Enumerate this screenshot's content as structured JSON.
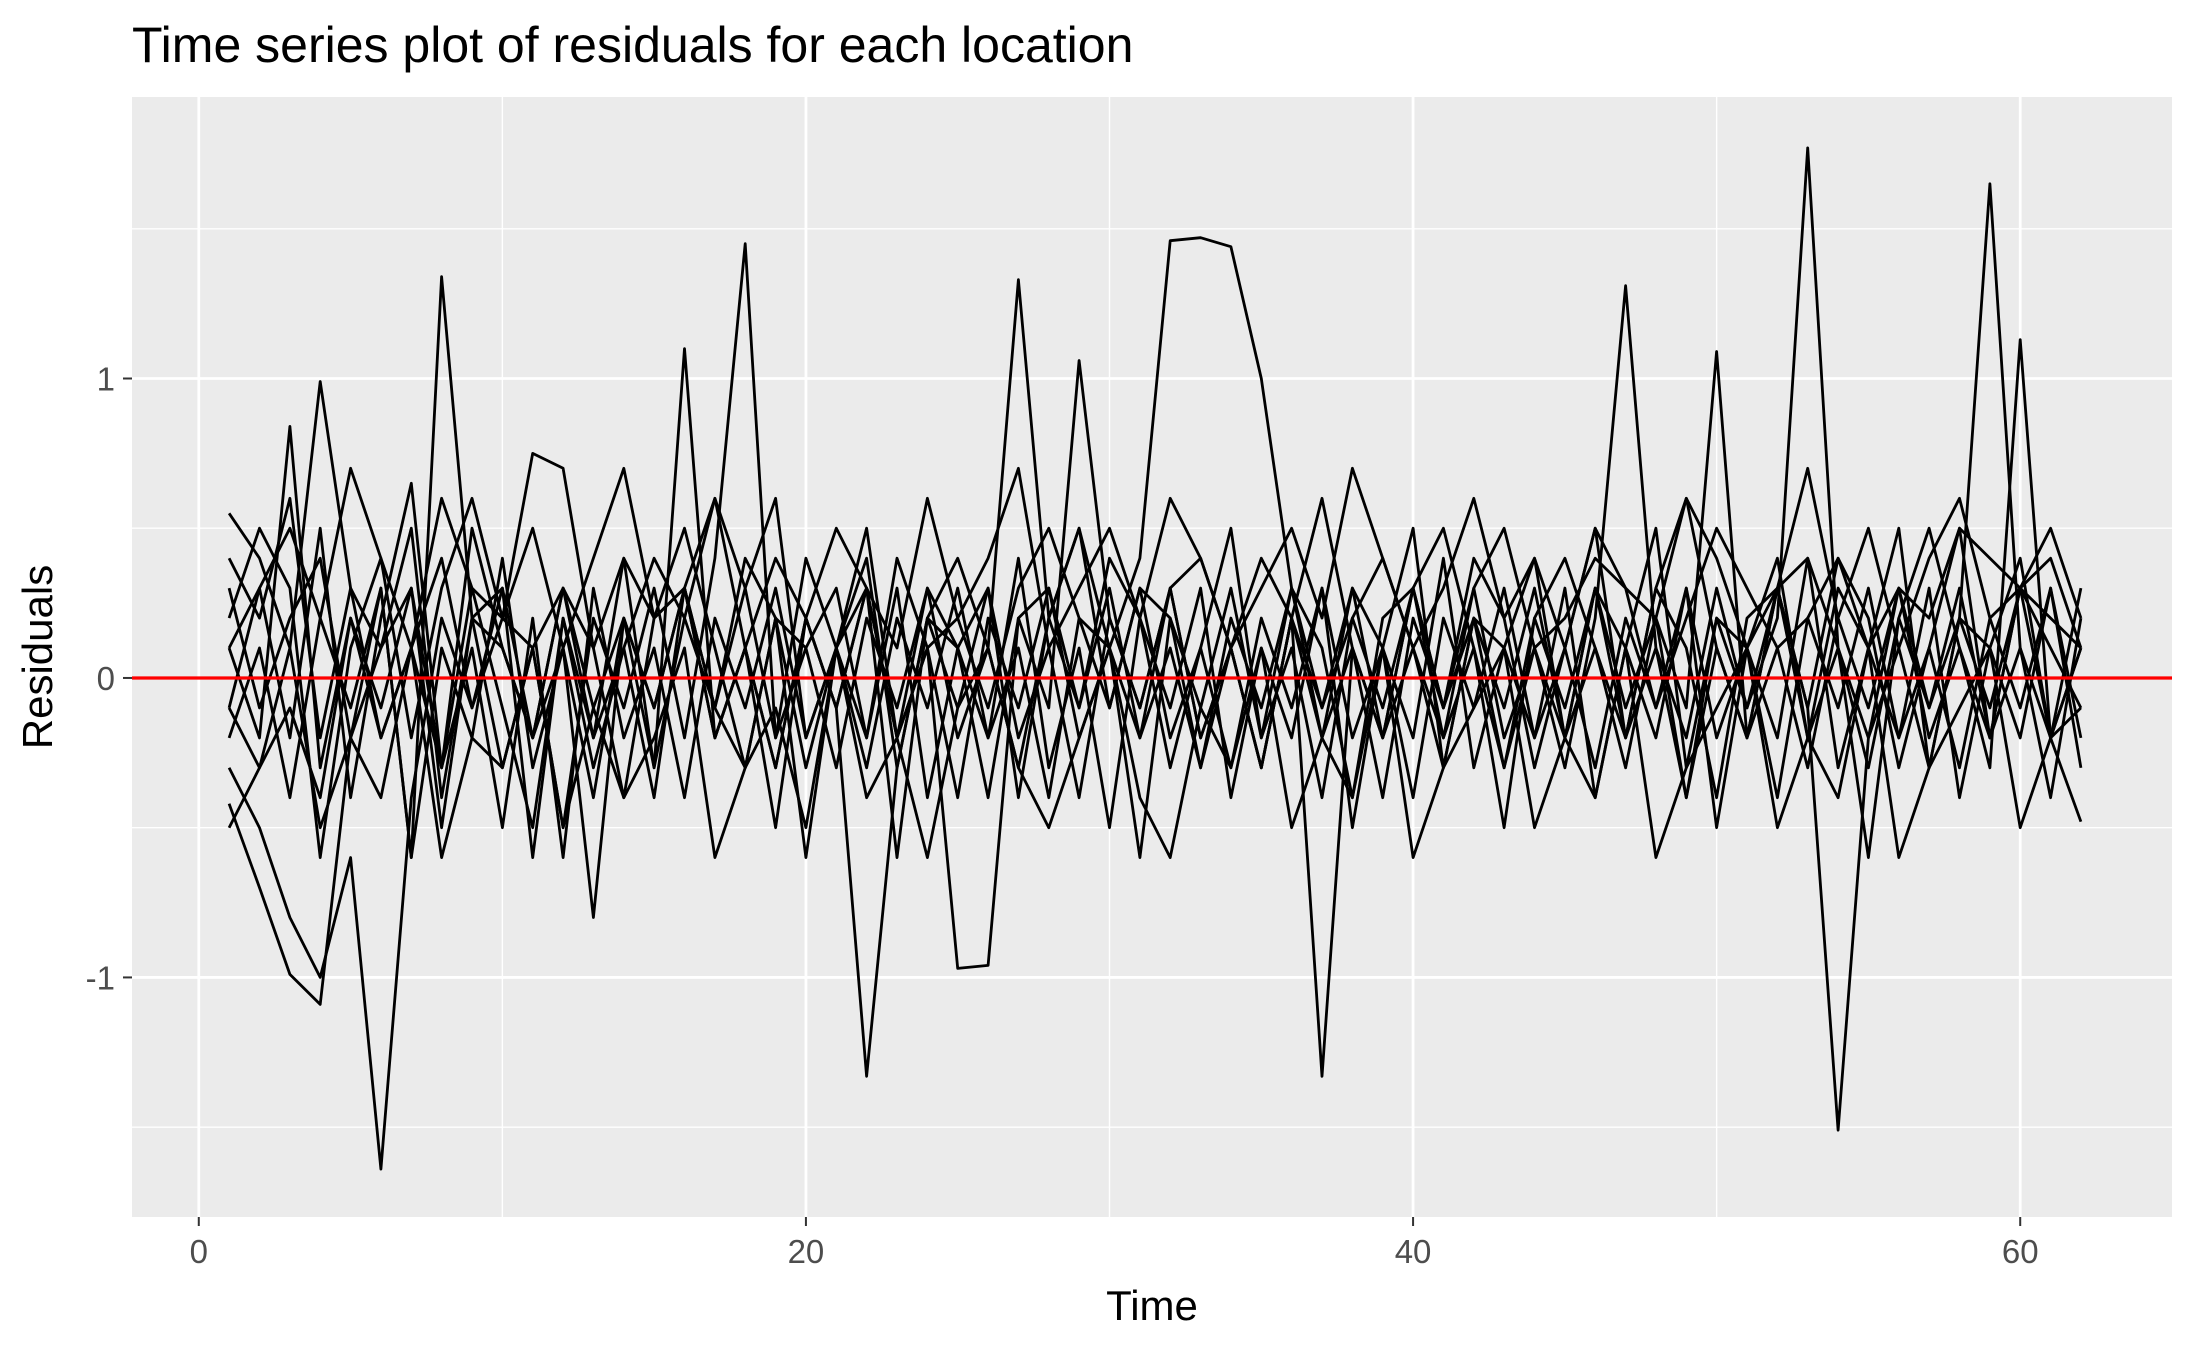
{
  "chart_data": {
    "type": "line",
    "title": "Time series plot of residuals for each location",
    "xlabel": "Time",
    "ylabel": "Residuals",
    "xlim": [
      -2.2,
      65.0
    ],
    "ylim": [
      -1.8,
      1.94
    ],
    "x_ticks": [
      0,
      20,
      40,
      60
    ],
    "x_tick_labels": [
      "0",
      "20",
      "40",
      "60"
    ],
    "y_ticks": [
      -1,
      0,
      1
    ],
    "y_tick_labels": [
      "-1",
      "0",
      "1"
    ],
    "grid": true,
    "legend": "none",
    "x": [
      1,
      2,
      3,
      4,
      5,
      6,
      7,
      8,
      9,
      10,
      11,
      12,
      13,
      14,
      15,
      16,
      17,
      18,
      19,
      20,
      21,
      22,
      23,
      24,
      25,
      26,
      27,
      28,
      29,
      30,
      31,
      32,
      33,
      34,
      35,
      36,
      37,
      38,
      39,
      40,
      41,
      42,
      43,
      44,
      45,
      46,
      47,
      48,
      49,
      50,
      51,
      52,
      53,
      54,
      55,
      56,
      57,
      58,
      59,
      60,
      61,
      62
    ],
    "reference_line": {
      "y": 0,
      "color": "#ff0000"
    },
    "line_color": "#000000",
    "series": [
      {
        "values": [
          0.55,
          0.4,
          0.1,
          0.99,
          0.3,
          -0.2,
          0.1,
          0.4,
          -0.1,
          0.2,
          0.1,
          0.3,
          -0.2,
          0.4,
          0.2,
          0.5,
          0.1,
          -0.3,
          0.2,
          0.1,
          0.3,
          -0.2,
          0.4,
          0.1,
          0.2,
          -0.1,
          0.3,
          0.5,
          0.2,
          0.1,
          0.4,
          1.46,
          1.47,
          1.44,
          1.0,
          0.3,
          -0.1,
          0.2,
          0.4,
          0.1,
          -0.2,
          0.3,
          0.5,
          0.1,
          0.2,
          0.4,
          0.3,
          -0.1,
          0.2,
          0.5,
          0.3,
          0.1,
          0.2,
          0.4,
          0.1,
          0.3,
          0.2,
          0.5,
          0.4,
          0.3,
          0.2,
          0.1
        ]
      },
      {
        "values": [
          -0.3,
          -0.5,
          -0.8,
          -1.0,
          -0.6,
          -1.64,
          -0.4,
          0.2,
          -0.1,
          0.3,
          -0.2,
          0.1,
          -0.4,
          0.2,
          -0.1,
          0.3,
          -0.2,
          0.1,
          -0.3,
          0.2,
          -0.1,
          -1.33,
          -0.3,
          0.2,
          -0.1,
          0.3,
          -0.2,
          0.1,
          -0.4,
          0.2,
          -0.1,
          0.3,
          -0.2,
          0.1,
          -0.3,
          0.2,
          -1.33,
          0.1,
          -0.2,
          0.3,
          -0.1,
          0.2,
          -0.3,
          0.1,
          -0.2,
          0.3,
          -0.1,
          0.2,
          -0.4,
          0.1,
          -0.2,
          0.3,
          -0.1,
          -1.51,
          -0.2,
          0.1,
          -0.3,
          0.2,
          -0.1,
          0.3,
          -0.2,
          0.1
        ]
      },
      {
        "values": [
          -0.42,
          -0.7,
          -0.99,
          -1.09,
          -0.2,
          0.3,
          -0.6,
          1.34,
          0.2,
          -0.3,
          0.1,
          -0.5,
          0.2,
          -0.1,
          0.3,
          -0.2,
          0.4,
          1.45,
          -0.2,
          0.1,
          -0.3,
          0.2,
          -0.1,
          0.3,
          -0.2,
          0.1,
          1.33,
          0.2,
          -0.1,
          0.3,
          -0.2,
          0.1,
          -0.3,
          0.2,
          -0.1,
          0.3,
          -0.2,
          0.1,
          -0.4,
          0.2,
          -0.1,
          0.3,
          -0.2,
          0.1,
          -0.3,
          0.2,
          1.31,
          0.1,
          -0.2,
          0.3,
          -0.1,
          0.2,
          1.77,
          0.1,
          -0.2,
          0.3,
          -0.1,
          0.2,
          1.65,
          0.1,
          -0.2,
          -0.48
        ]
      },
      {
        "values": [
          0.1,
          -0.2,
          0.84,
          -0.3,
          0.2,
          -0.1,
          0.3,
          -0.5,
          0.2,
          0.1,
          -0.2,
          0.3,
          -0.1,
          0.2,
          -0.3,
          1.1,
          -0.2,
          0.1,
          -0.3,
          0.2,
          -0.1,
          0.3,
          -0.2,
          0.1,
          -0.97,
          -0.96,
          0.2,
          -0.1,
          1.06,
          0.2,
          -0.1,
          0.3,
          -0.2,
          0.1,
          -0.3,
          0.2,
          -0.1,
          0.3,
          -0.2,
          0.1,
          -0.3,
          0.2,
          -0.1,
          0.3,
          -0.2,
          0.1,
          -0.3,
          0.2,
          -0.1,
          1.09,
          -0.2,
          0.1,
          -0.3,
          0.2,
          -0.1,
          0.3,
          -0.2,
          0.1,
          -0.3,
          1.13,
          -0.2,
          0.1
        ]
      },
      {
        "values": [
          0.2,
          0.5,
          0.3,
          -0.6,
          0.1,
          0.4,
          -0.2,
          0.3,
          0.6,
          0.2,
          0.75,
          0.7,
          0.1,
          0.4,
          -0.3,
          0.2,
          0.6,
          0.3,
          -0.2,
          0.4,
          0.1,
          0.3,
          -0.6,
          0.2,
          0.4,
          0.1,
          -0.3,
          0.2,
          0.5,
          0.1,
          -0.2,
          0.3,
          0.4,
          0.1,
          -0.3,
          0.2,
          0.6,
          0.1,
          -0.2,
          0.3,
          0.5,
          0.1,
          -0.3,
          0.2,
          0.4,
          0.1,
          -0.2,
          0.3,
          0.6,
          0.1,
          -0.2,
          0.3,
          0.4,
          0.1,
          -0.3,
          0.2,
          0.5,
          0.1,
          -0.2,
          0.3,
          0.4,
          0.1
        ]
      },
      {
        "values": [
          -0.1,
          0.3,
          -0.2,
          0.5,
          -0.4,
          0.2,
          0.65,
          -0.3,
          0.1,
          -0.5,
          0.2,
          -0.6,
          0.3,
          -0.2,
          0.1,
          -0.4,
          0.2,
          -0.1,
          0.3,
          -0.2,
          0.1,
          -0.3,
          0.2,
          -0.1,
          0.3,
          -0.2,
          0.1,
          -0.4,
          0.2,
          -0.1,
          0.3,
          -0.2,
          0.1,
          -0.3,
          0.2,
          -0.1,
          0.3,
          -0.2,
          0.1,
          -0.4,
          0.2,
          -0.1,
          0.3,
          -0.2,
          0.1,
          -0.3,
          0.2,
          -0.1,
          0.3,
          -0.2,
          0.1,
          -0.4,
          0.2,
          -0.1,
          0.3,
          -0.2,
          0.1,
          -0.3,
          0.2,
          -0.1,
          0.3,
          -0.2
        ]
      },
      {
        "values": [
          0.4,
          0.2,
          0.6,
          -0.2,
          0.3,
          0.1,
          0.5,
          -0.4,
          0.2,
          0.3,
          -0.6,
          0.2,
          -0.3,
          0.1,
          0.4,
          0.2,
          -0.1,
          0.3,
          0.6,
          -0.2,
          0.1,
          0.4,
          -0.3,
          0.2,
          0.1,
          0.3,
          -0.4,
          0.2,
          0.5,
          -0.1,
          0.3,
          0.2,
          -0.3,
          0.1,
          0.4,
          0.2,
          -0.2,
          0.3,
          0.1,
          0.5,
          -0.3,
          0.2,
          0.1,
          0.4,
          -0.2,
          0.3,
          0.1,
          0.5,
          -0.3,
          0.2,
          0.1,
          0.4,
          -0.2,
          0.3,
          0.1,
          0.5,
          -0.3,
          0.2,
          0.1,
          0.4,
          -0.2,
          0.3
        ]
      },
      {
        "values": [
          -0.2,
          0.1,
          -0.4,
          0.2,
          -0.1,
          0.3,
          -0.6,
          0.1,
          -0.2,
          0.4,
          -0.3,
          0.1,
          -0.8,
          0.2,
          -0.1,
          0.3,
          -0.2,
          0.1,
          -0.5,
          0.2,
          -0.1,
          0.3,
          -0.2,
          0.1,
          -0.4,
          0.2,
          -0.1,
          0.3,
          -0.2,
          0.1,
          -0.6,
          0.2,
          -0.1,
          0.3,
          -0.2,
          0.1,
          -0.4,
          0.2,
          -0.1,
          0.3,
          -0.2,
          0.1,
          -0.5,
          0.2,
          -0.1,
          0.3,
          -0.2,
          0.1,
          -0.4,
          0.2,
          -0.1,
          0.3,
          -0.2,
          0.1,
          -0.6,
          0.2,
          -0.1,
          0.3,
          -0.2,
          0.1,
          -0.4,
          0.2
        ]
      },
      {
        "values": [
          0.3,
          -0.1,
          0.2,
          0.4,
          -0.2,
          0.1,
          0.3,
          -0.3,
          0.5,
          0.1,
          -0.2,
          0.3,
          0.1,
          -0.4,
          0.2,
          0.3,
          -0.1,
          0.4,
          0.2,
          -0.3,
          0.1,
          0.5,
          -0.2,
          0.3,
          0.1,
          -0.4,
          0.2,
          0.3,
          -0.1,
          0.4,
          0.2,
          -0.3,
          0.1,
          0.5,
          -0.2,
          0.3,
          0.1,
          -0.4,
          0.2,
          0.3,
          -0.1,
          0.4,
          0.2,
          -0.3,
          0.1,
          0.5,
          -0.2,
          0.3,
          0.1,
          -0.4,
          0.2,
          0.3,
          -0.1,
          0.4,
          0.2,
          -0.3,
          0.1,
          0.5,
          -0.2,
          0.3,
          0.1,
          -0.1
        ]
      },
      {
        "values": [
          -0.5,
          -0.3,
          -0.1,
          -0.4,
          0.2,
          -0.2,
          0.1,
          -0.3,
          0.3,
          -0.1,
          -0.5,
          0.2,
          -0.2,
          0.1,
          -0.4,
          0.3,
          -0.1,
          -0.3,
          0.2,
          -0.6,
          0.1,
          -0.2,
          0.3,
          -0.4,
          0.1,
          -0.2,
          0.4,
          -0.3,
          0.1,
          -0.5,
          0.2,
          -0.1,
          0.3,
          -0.4,
          0.1,
          -0.2,
          0.3,
          -0.5,
          0.1,
          -0.2,
          0.4,
          -0.3,
          0.1,
          -0.2,
          0.3,
          -0.4,
          0.1,
          -0.2,
          0.3,
          -0.5,
          0.1,
          -0.2,
          0.4,
          -0.3,
          0.1,
          -0.2,
          0.3,
          -0.4,
          0.1,
          -0.2,
          0.3,
          -0.3
        ]
      },
      {
        "values": [
          0.1,
          0.3,
          0.5,
          0.2,
          0.7,
          0.4,
          0.1,
          0.6,
          0.3,
          0.2,
          0.5,
          0.1,
          0.4,
          0.7,
          0.2,
          0.3,
          0.6,
          0.1,
          0.4,
          0.2,
          0.5,
          0.3,
          0.1,
          0.6,
          0.2,
          0.4,
          0.7,
          0.1,
          0.3,
          0.5,
          0.2,
          0.6,
          0.4,
          0.1,
          0.3,
          0.5,
          0.2,
          0.7,
          0.4,
          0.1,
          0.3,
          0.6,
          0.2,
          0.4,
          0.1,
          0.5,
          0.3,
          0.2,
          0.6,
          0.4,
          0.1,
          0.3,
          0.7,
          0.2,
          0.5,
          0.1,
          0.4,
          0.6,
          0.2,
          0.3,
          0.5,
          0.2
        ]
      },
      {
        "values": [
          -0.1,
          -0.3,
          0.1,
          -0.5,
          -0.2,
          -0.4,
          0.1,
          -0.6,
          -0.2,
          -0.3,
          0.1,
          -0.5,
          -0.1,
          -0.4,
          -0.2,
          0.1,
          -0.6,
          -0.3,
          -0.1,
          -0.5,
          0.1,
          -0.4,
          -0.2,
          -0.6,
          -0.1,
          0.1,
          -0.3,
          -0.5,
          -0.2,
          0.1,
          -0.4,
          -0.6,
          -0.1,
          -0.3,
          0.1,
          -0.5,
          -0.2,
          -0.4,
          0.1,
          -0.6,
          -0.3,
          -0.1,
          0.1,
          -0.5,
          -0.2,
          -0.4,
          0.1,
          -0.6,
          -0.3,
          -0.1,
          0.1,
          -0.5,
          -0.2,
          -0.4,
          0.1,
          -0.6,
          -0.3,
          -0.1,
          0.1,
          -0.5,
          -0.2,
          -0.1
        ]
      }
    ]
  }
}
